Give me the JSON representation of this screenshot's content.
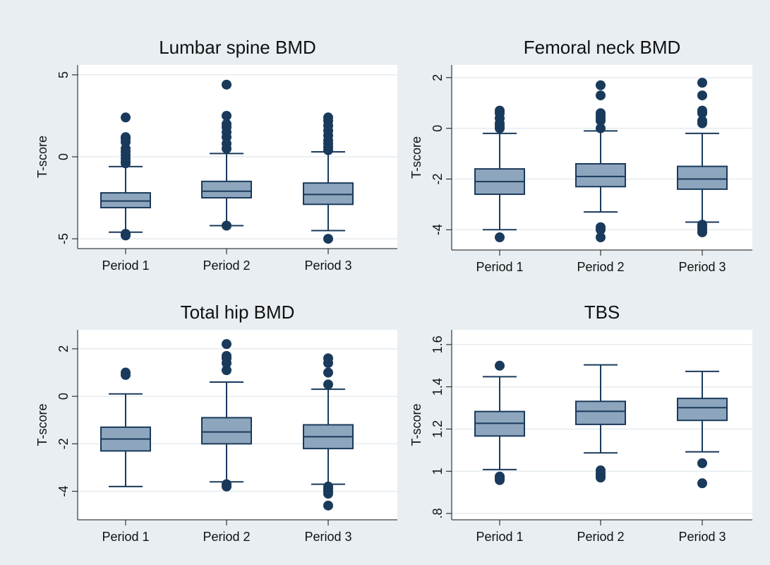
{
  "colors": {
    "outer_background": "#e8eef2",
    "plot_background": "#ffffff",
    "box_fill": "#8ea6bd",
    "line": "#1a3a5c",
    "grid": "#e6ecf0"
  },
  "chart_data": [
    {
      "type": "boxplot",
      "title": "Lumbar spine BMD",
      "ylabel": "T-score",
      "xlabel": "",
      "grid": true,
      "legend": "none",
      "ylim": [
        -5.6,
        5.6
      ],
      "yticks": [
        5,
        0,
        -5
      ],
      "ytick_labels": [
        "5",
        "0",
        "-5"
      ],
      "categories": [
        "Period 1",
        "Period 2",
        "Period 3"
      ],
      "boxes": [
        {
          "whisker_low": -4.6,
          "q1": -3.1,
          "median": -2.7,
          "q3": -2.2,
          "whisker_high": -0.6,
          "outliers": [
            -4.7,
            -4.8,
            -0.4,
            -0.3,
            -0.1,
            0.1,
            0.3,
            0.5,
            0.9,
            1.1,
            1.2,
            2.4
          ]
        },
        {
          "whisker_low": -4.2,
          "q1": -2.5,
          "median": -2.1,
          "q3": -1.5,
          "whisker_high": 0.2,
          "outliers": [
            -4.2,
            0.5,
            0.8,
            1.2,
            1.5,
            1.8,
            2.0,
            2.5,
            4.4
          ]
        },
        {
          "whisker_low": -4.5,
          "q1": -2.9,
          "median": -2.3,
          "q3": -1.6,
          "whisker_high": 0.3,
          "outliers": [
            -5.0,
            0.4,
            0.6,
            0.8,
            1.0,
            1.3,
            1.6,
            1.9,
            2.2,
            2.4
          ]
        }
      ]
    },
    {
      "type": "boxplot",
      "title": "Femoral neck BMD",
      "ylabel": "T-score",
      "xlabel": "",
      "grid": true,
      "legend": "none",
      "ylim": [
        -4.8,
        2.5
      ],
      "yticks": [
        2,
        0,
        -2,
        -4
      ],
      "ytick_labels": [
        "2",
        "0",
        "-2",
        "-4"
      ],
      "categories": [
        "Period 1",
        "Period 2",
        "Period 3"
      ],
      "boxes": [
        {
          "whisker_low": -4.0,
          "q1": -2.6,
          "median": -2.1,
          "q3": -1.6,
          "whisker_high": -0.2,
          "outliers": [
            -4.3,
            0.0,
            0.1,
            0.2,
            0.4,
            0.6,
            0.7
          ]
        },
        {
          "whisker_low": -3.3,
          "q1": -2.3,
          "median": -1.9,
          "q3": -1.4,
          "whisker_high": -0.1,
          "outliers": [
            -3.9,
            -4.0,
            -4.3,
            0.0,
            0.3,
            0.4,
            0.5,
            0.6,
            1.3,
            1.7
          ]
        },
        {
          "whisker_low": -3.7,
          "q1": -2.4,
          "median": -2.0,
          "q3": -1.5,
          "whisker_high": -0.2,
          "outliers": [
            -3.8,
            -3.9,
            -4.0,
            -4.1,
            0.2,
            0.3,
            0.6,
            0.7,
            1.3,
            1.8
          ]
        }
      ]
    },
    {
      "type": "boxplot",
      "title": "Total hip BMD",
      "ylabel": "T-score",
      "xlabel": "",
      "grid": true,
      "legend": "none",
      "ylim": [
        -5.2,
        2.8
      ],
      "yticks": [
        2,
        0,
        -2,
        -4
      ],
      "ytick_labels": [
        "2",
        "0",
        "-2",
        "-4"
      ],
      "categories": [
        "Period 1",
        "Period 2",
        "Period 3"
      ],
      "boxes": [
        {
          "whisker_low": -3.8,
          "q1": -2.3,
          "median": -1.8,
          "q3": -1.3,
          "whisker_high": 0.1,
          "outliers": [
            0.9,
            1.0
          ]
        },
        {
          "whisker_low": -3.6,
          "q1": -2.0,
          "median": -1.5,
          "q3": -0.9,
          "whisker_high": 0.6,
          "outliers": [
            -3.7,
            -3.8,
            1.1,
            1.4,
            1.6,
            1.7,
            2.2
          ]
        },
        {
          "whisker_low": -3.7,
          "q1": -2.2,
          "median": -1.7,
          "q3": -1.2,
          "whisker_high": 0.3,
          "outliers": [
            -3.8,
            -3.9,
            -4.0,
            -4.1,
            -4.6,
            0.5,
            1.0,
            1.4,
            1.6
          ]
        }
      ]
    },
    {
      "type": "boxplot",
      "title": "TBS",
      "ylabel": "T-score",
      "xlabel": "",
      "grid": true,
      "legend": "none",
      "ylim": [
        0.77,
        1.67
      ],
      "yticks": [
        1.6,
        1.4,
        1.2,
        1.0,
        0.8
      ],
      "ytick_labels": [
        "1.6",
        "1.4",
        "1.2",
        "1",
        ".8"
      ],
      "categories": [
        "Period 1",
        "Period 2",
        "Period 3"
      ],
      "boxes": [
        {
          "whisker_low": 1.008,
          "q1": 1.167,
          "median": 1.227,
          "q3": 1.283,
          "whisker_high": 1.448,
          "outliers": [
            0.958,
            0.968,
            0.975,
            1.5
          ]
        },
        {
          "whisker_low": 1.087,
          "q1": 1.222,
          "median": 1.284,
          "q3": 1.331,
          "whisker_high": 1.504,
          "outliers": [
            0.97,
            0.98,
            0.99,
            1.004
          ]
        },
        {
          "whisker_low": 1.092,
          "q1": 1.241,
          "median": 1.301,
          "q3": 1.345,
          "whisker_high": 1.473,
          "outliers": [
            0.943,
            1.038
          ]
        }
      ]
    }
  ]
}
